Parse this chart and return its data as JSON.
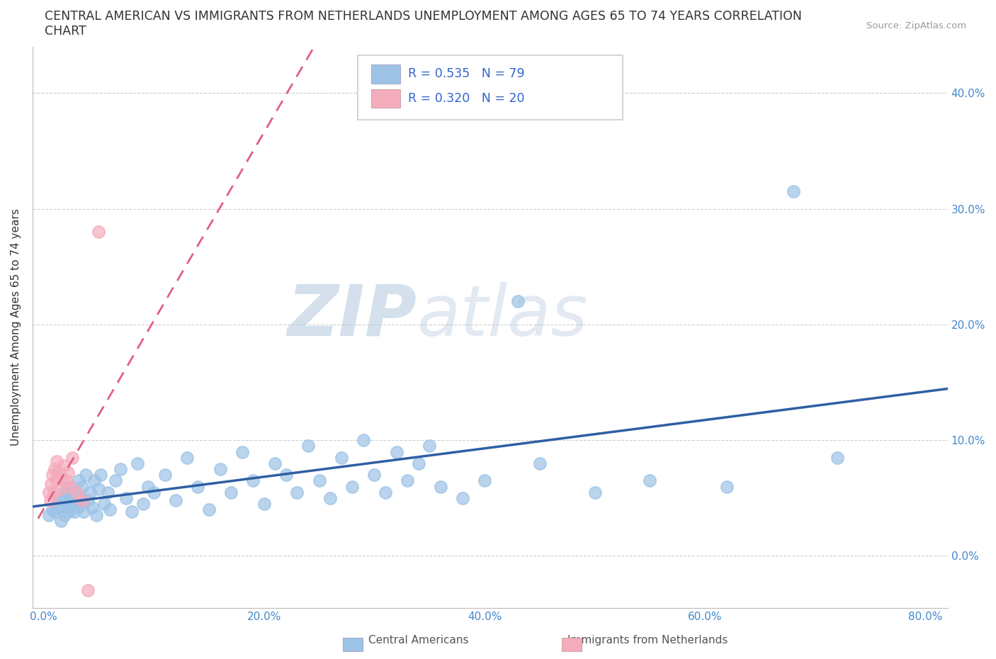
{
  "title_line1": "CENTRAL AMERICAN VS IMMIGRANTS FROM NETHERLANDS UNEMPLOYMENT AMONG AGES 65 TO 74 YEARS CORRELATION",
  "title_line2": "CHART",
  "source": "Source: ZipAtlas.com",
  "xlabel_ticks": [
    "0.0%",
    "20.0%",
    "40.0%",
    "60.0%",
    "80.0%"
  ],
  "xlabel_vals": [
    0.0,
    0.2,
    0.4,
    0.6,
    0.8
  ],
  "ylabel_ticks": [
    "0.0%",
    "10.0%",
    "20.0%",
    "30.0%",
    "40.0%"
  ],
  "ylabel_vals": [
    0.0,
    0.1,
    0.2,
    0.3,
    0.4
  ],
  "ylabel_label": "Unemployment Among Ages 65 to 74 years",
  "legend_labels": [
    "Central Americans",
    "Immigrants from Netherlands"
  ],
  "blue_R": 0.535,
  "blue_N": 79,
  "pink_R": 0.32,
  "pink_N": 20,
  "blue_color": "#9DC3E6",
  "pink_color": "#F4ABBC",
  "blue_line_color": "#2E5FA3",
  "pink_line_color": "#E06080",
  "watermark_color": "#C8D8EC",
  "ylim": [
    -0.045,
    0.44
  ],
  "xlim": [
    -0.01,
    0.82
  ],
  "blue_x": [
    0.005,
    0.008,
    0.01,
    0.012,
    0.013,
    0.015,
    0.016,
    0.018,
    0.019,
    0.02,
    0.021,
    0.022,
    0.023,
    0.024,
    0.025,
    0.026,
    0.027,
    0.028,
    0.03,
    0.031,
    0.032,
    0.033,
    0.034,
    0.035,
    0.036,
    0.038,
    0.04,
    0.042,
    0.044,
    0.046,
    0.048,
    0.05,
    0.052,
    0.055,
    0.058,
    0.06,
    0.065,
    0.07,
    0.075,
    0.08,
    0.085,
    0.09,
    0.095,
    0.1,
    0.11,
    0.12,
    0.13,
    0.14,
    0.15,
    0.16,
    0.17,
    0.18,
    0.19,
    0.2,
    0.21,
    0.22,
    0.23,
    0.24,
    0.25,
    0.26,
    0.27,
    0.28,
    0.29,
    0.3,
    0.31,
    0.32,
    0.33,
    0.34,
    0.35,
    0.36,
    0.38,
    0.4,
    0.43,
    0.45,
    0.5,
    0.55,
    0.62,
    0.68,
    0.72
  ],
  "blue_y": [
    0.035,
    0.04,
    0.038,
    0.045,
    0.042,
    0.05,
    0.03,
    0.048,
    0.035,
    0.055,
    0.058,
    0.042,
    0.038,
    0.06,
    0.045,
    0.052,
    0.048,
    0.038,
    0.055,
    0.042,
    0.065,
    0.05,
    0.045,
    0.06,
    0.038,
    0.07,
    0.048,
    0.055,
    0.042,
    0.065,
    0.035,
    0.058,
    0.07,
    0.045,
    0.055,
    0.04,
    0.065,
    0.075,
    0.05,
    0.038,
    0.08,
    0.045,
    0.06,
    0.055,
    0.07,
    0.048,
    0.085,
    0.06,
    0.04,
    0.075,
    0.055,
    0.09,
    0.065,
    0.045,
    0.08,
    0.07,
    0.055,
    0.095,
    0.065,
    0.05,
    0.085,
    0.06,
    0.1,
    0.07,
    0.055,
    0.09,
    0.065,
    0.08,
    0.095,
    0.06,
    0.05,
    0.065,
    0.22,
    0.08,
    0.055,
    0.065,
    0.06,
    0.315,
    0.085
  ],
  "pink_x": [
    0.005,
    0.006,
    0.007,
    0.008,
    0.009,
    0.01,
    0.011,
    0.012,
    0.013,
    0.015,
    0.016,
    0.018,
    0.02,
    0.022,
    0.024,
    0.026,
    0.03,
    0.035,
    0.04,
    0.05
  ],
  "pink_y": [
    0.055,
    0.048,
    0.062,
    0.07,
    0.055,
    0.075,
    0.065,
    0.082,
    0.072,
    0.058,
    0.068,
    0.078,
    0.065,
    0.072,
    0.06,
    0.085,
    0.055,
    0.048,
    -0.03,
    0.28
  ]
}
